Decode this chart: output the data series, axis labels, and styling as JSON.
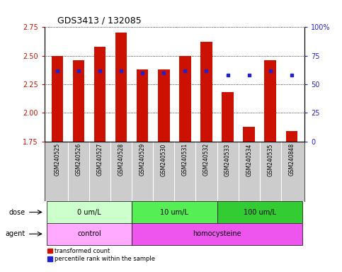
{
  "title": "GDS3413 / 132085",
  "samples": [
    "GSM240525",
    "GSM240526",
    "GSM240527",
    "GSM240528",
    "GSM240529",
    "GSM240530",
    "GSM240531",
    "GSM240532",
    "GSM240533",
    "GSM240534",
    "GSM240535",
    "GSM240848"
  ],
  "bar_values": [
    2.5,
    2.46,
    2.58,
    2.7,
    2.38,
    2.38,
    2.5,
    2.62,
    2.18,
    1.88,
    2.46,
    1.84
  ],
  "blue_values": [
    62,
    62,
    62,
    62,
    60,
    60,
    62,
    62,
    58,
    58,
    62,
    58
  ],
  "ylim_left": [
    1.75,
    2.75
  ],
  "ylim_right": [
    0,
    100
  ],
  "yticks_left": [
    1.75,
    2.0,
    2.25,
    2.5,
    2.75
  ],
  "yticks_right": [
    0,
    25,
    50,
    75,
    100
  ],
  "ytick_labels_right": [
    "0",
    "25",
    "50",
    "75",
    "100%"
  ],
  "bar_color": "#cc1100",
  "blue_color": "#2222cc",
  "bar_bottom": 1.75,
  "dose_groups": [
    {
      "label": "0 um/L",
      "start": 0,
      "end": 4,
      "color": "#ccffcc"
    },
    {
      "label": "10 um/L",
      "start": 4,
      "end": 8,
      "color": "#55ee55"
    },
    {
      "label": "100 um/L",
      "start": 8,
      "end": 12,
      "color": "#33cc33"
    }
  ],
  "agent_groups": [
    {
      "label": "control",
      "start": 0,
      "end": 4,
      "color": "#ffaaff"
    },
    {
      "label": "homocysteine",
      "start": 4,
      "end": 12,
      "color": "#ee55ee"
    }
  ],
  "dose_label": "dose",
  "agent_label": "agent",
  "legend_red": "transformed count",
  "legend_blue": "percentile rank within the sample",
  "tick_color_left": "#cc1100",
  "tick_color_right": "#2222cc",
  "sample_bg_color": "#cccccc",
  "figsize": [
    4.83,
    3.84
  ],
  "dpi": 100
}
